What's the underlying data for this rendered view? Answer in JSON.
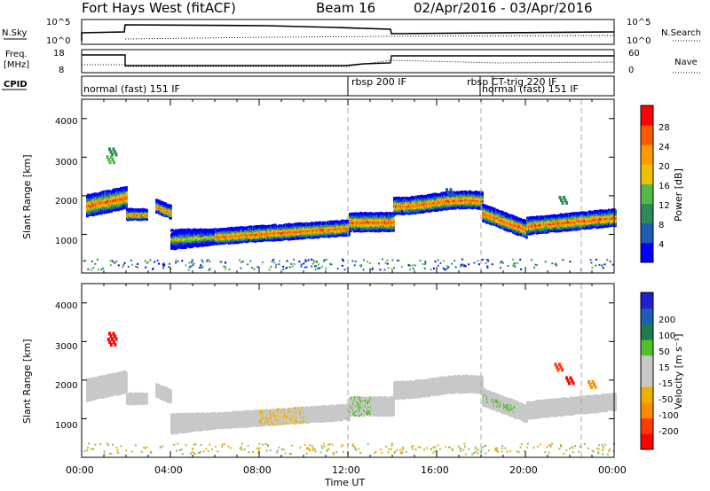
{
  "header": {
    "station": "Fort Hays West (fitACF)",
    "beam": "Beam 16",
    "dates": "02/Apr/2016 - 03/Apr/2016"
  },
  "strips": {
    "nsky": {
      "label": "N.Sky",
      "left_ticks": [
        "10^5",
        "10^0"
      ],
      "right_label": "N.Search",
      "right_ticks": [
        "10^5",
        "10^0"
      ]
    },
    "freq": {
      "label_line1": "Freq.",
      "label_line2": "[MHz]",
      "left_ticks": [
        "18",
        "8"
      ],
      "right_label": "Nave",
      "right_ticks": [
        "60",
        "0"
      ]
    },
    "cpid": {
      "label": "CPID",
      "modes": [
        {
          "name": "normal (fast) 151 IF",
          "start_hour": 0
        },
        {
          "name": "rbsp 200 IF",
          "start_hour": 12
        },
        {
          "name": "rbsp CT-trig 220 IF",
          "start_hour": 17.5
        },
        {
          "name": "normal (fast) 151 IF",
          "start_hour": 18
        }
      ]
    }
  },
  "colors": {
    "power": [
      "#0000ff",
      "#1e5cb4",
      "#2e8b57",
      "#54b84a",
      "#f0c000",
      "#ff9900",
      "#ff5a00",
      "#ff0000"
    ],
    "velocity": [
      "#ff0000",
      "#ff3c00",
      "#ff8c00",
      "#f0b000",
      "#c8c8c8",
      "#c8c8c8",
      "#4fc02a",
      "#1f7a50",
      "#1f5cb4",
      "#2020cc"
    ]
  },
  "chart_data": [
    {
      "type": "heatmap",
      "name": "power",
      "xlabel": "",
      "ylabel": "Slant Range [km]",
      "yticks": [
        "1000",
        "2000",
        "3000",
        "4000"
      ],
      "xlim": [
        0,
        24
      ],
      "ylim": [
        0,
        4500
      ],
      "colorbar_label": "Power [dB]",
      "colorbar_ticks": [
        "4",
        "8",
        "12",
        "16",
        "20",
        "24",
        "28"
      ],
      "colorbar_range": [
        0,
        32
      ]
    },
    {
      "type": "heatmap",
      "name": "velocity",
      "xlabel": "Time UT",
      "ylabel": "Slant Range [km]",
      "xticks": [
        "00:00",
        "04:00",
        "08:00",
        "12:00",
        "16:00",
        "20:00",
        "00:00"
      ],
      "yticks": [
        "1000",
        "2000",
        "3000",
        "4000"
      ],
      "xlim": [
        0,
        24
      ],
      "ylim": [
        0,
        4500
      ],
      "colorbar_label": "Velocity [m s⁻¹]",
      "colorbar_ticks": [
        "-200",
        "-100",
        "-50",
        "-15",
        "15",
        "50",
        "100",
        "200"
      ]
    }
  ]
}
